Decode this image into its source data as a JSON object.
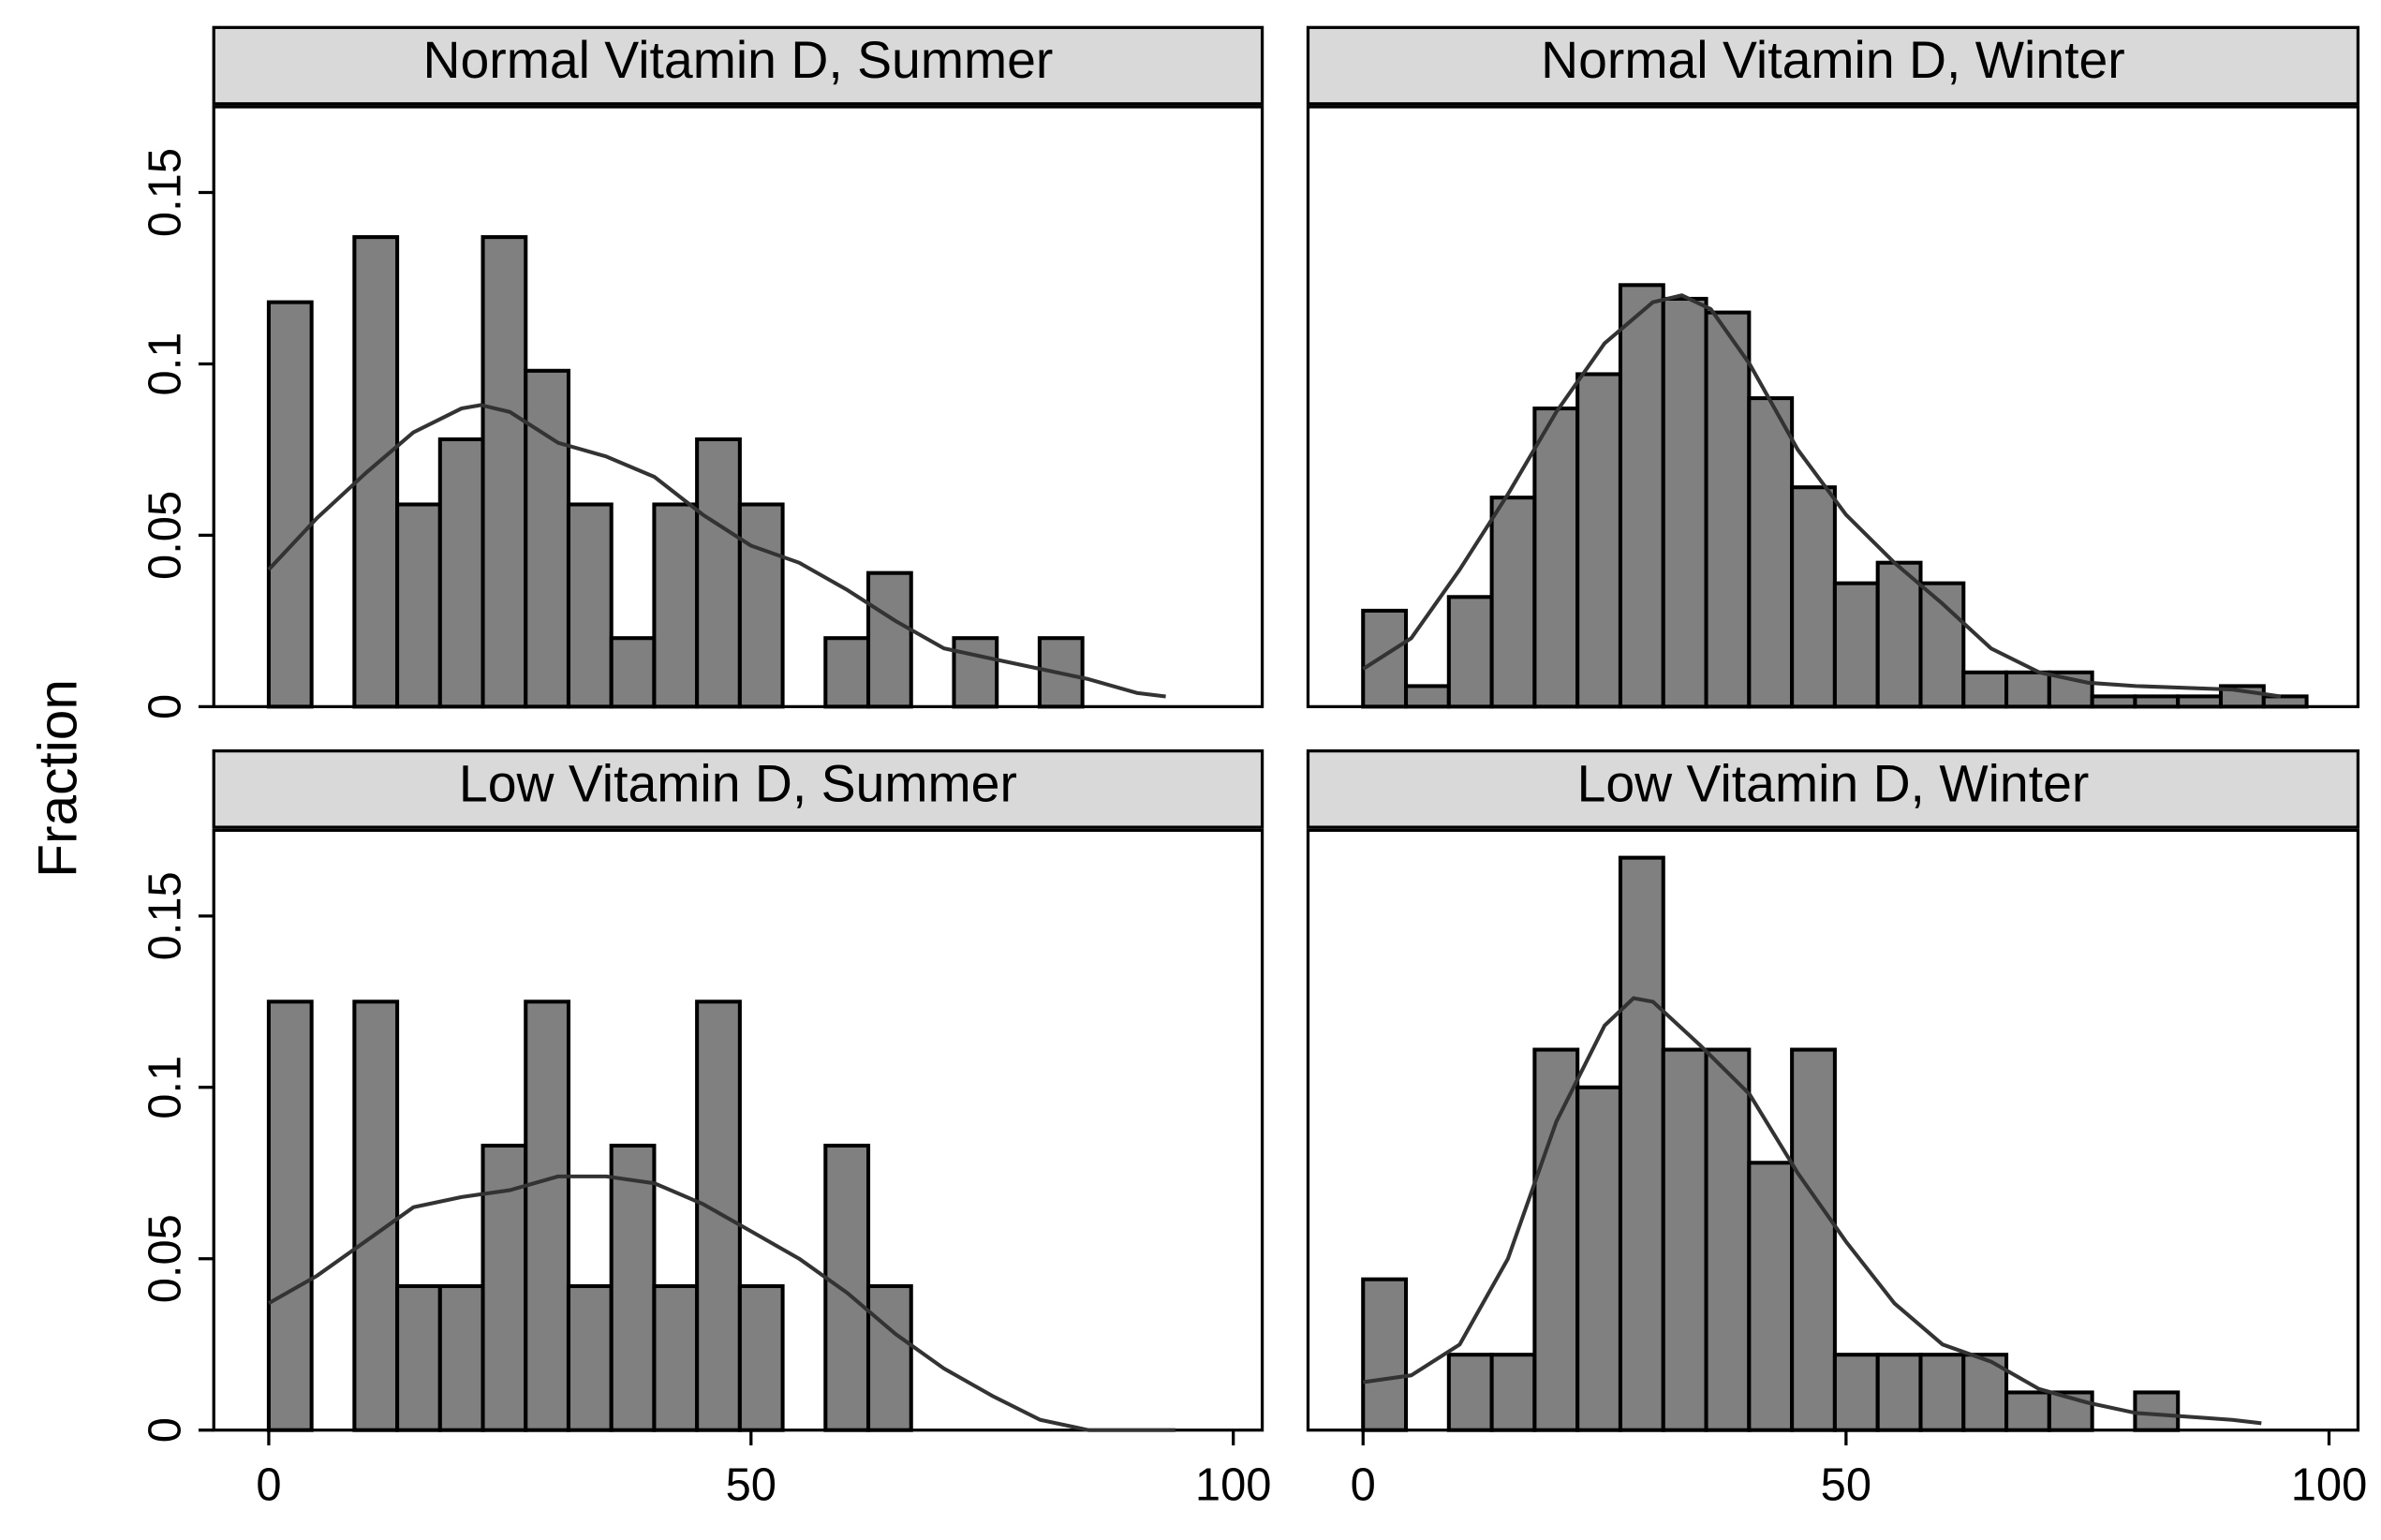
{
  "chart_data": [
    {
      "type": "bar",
      "title": "Normal Vitamin D, Summer",
      "bin_width": 4.44,
      "bin_start": 0,
      "values": [
        0.118,
        0,
        0.137,
        0.059,
        0.078,
        0.137,
        0.098,
        0.059,
        0.02,
        0.059,
        0.078,
        0.059,
        0,
        0.02,
        0.039,
        0,
        0.02,
        0,
        0.02
      ],
      "density_curve": [
        [
          0,
          0.04
        ],
        [
          5,
          0.055
        ],
        [
          10,
          0.068
        ],
        [
          15,
          0.08
        ],
        [
          20,
          0.087
        ],
        [
          22,
          0.088
        ],
        [
          25,
          0.086
        ],
        [
          30,
          0.077
        ],
        [
          35,
          0.073
        ],
        [
          40,
          0.067
        ],
        [
          45,
          0.056
        ],
        [
          50,
          0.047
        ],
        [
          55,
          0.042
        ],
        [
          60,
          0.034
        ],
        [
          65,
          0.025
        ],
        [
          70,
          0.017
        ],
        [
          75,
          0.014
        ],
        [
          80,
          0.011
        ],
        [
          85,
          0.008
        ],
        [
          90,
          0.004
        ],
        [
          93,
          0.003
        ]
      ]
    },
    {
      "type": "bar",
      "title": "Normal Vitamin D, Winter",
      "bin_width": 4.44,
      "bin_start": 0,
      "values": [
        0.028,
        0.006,
        0.032,
        0.061,
        0.087,
        0.097,
        0.123,
        0.119,
        0.115,
        0.09,
        0.064,
        0.036,
        0.042,
        0.036,
        0.01,
        0.01,
        0.01,
        0.003,
        0.003,
        0.003,
        0.006,
        0.003
      ],
      "density_curve": [
        [
          0,
          0.011
        ],
        [
          5,
          0.02
        ],
        [
          10,
          0.04
        ],
        [
          15,
          0.062
        ],
        [
          20,
          0.086
        ],
        [
          25,
          0.106
        ],
        [
          30,
          0.118
        ],
        [
          33,
          0.12
        ],
        [
          36,
          0.116
        ],
        [
          40,
          0.1
        ],
        [
          45,
          0.075
        ],
        [
          50,
          0.056
        ],
        [
          55,
          0.042
        ],
        [
          60,
          0.03
        ],
        [
          65,
          0.017
        ],
        [
          70,
          0.01
        ],
        [
          75,
          0.007
        ],
        [
          80,
          0.006
        ],
        [
          90,
          0.005
        ],
        [
          95,
          0.003
        ]
      ]
    },
    {
      "type": "bar",
      "title": "Low Vitamin D, Summer",
      "bin_width": 4.44,
      "bin_start": 0,
      "values": [
        0.125,
        0,
        0.125,
        0.042,
        0.042,
        0.083,
        0.125,
        0.042,
        0.083,
        0.042,
        0.125,
        0.042,
        0,
        0.083,
        0.042
      ],
      "density_curve": [
        [
          0,
          0.037
        ],
        [
          5,
          0.045
        ],
        [
          10,
          0.055
        ],
        [
          15,
          0.065
        ],
        [
          20,
          0.068
        ],
        [
          25,
          0.07
        ],
        [
          30,
          0.074
        ],
        [
          35,
          0.074
        ],
        [
          40,
          0.072
        ],
        [
          45,
          0.066
        ],
        [
          50,
          0.058
        ],
        [
          55,
          0.05
        ],
        [
          60,
          0.04
        ],
        [
          65,
          0.028
        ],
        [
          70,
          0.018
        ],
        [
          75,
          0.01
        ],
        [
          80,
          0.003
        ],
        [
          85,
          0
        ],
        [
          94,
          0
        ]
      ]
    },
    {
      "type": "bar",
      "title": "Low Vitamin D, Winter",
      "bin_width": 4.44,
      "bin_start": 0,
      "values": [
        0.044,
        0,
        0.022,
        0.022,
        0.111,
        0.1,
        0.167,
        0.111,
        0.111,
        0.078,
        0.111,
        0.022,
        0.022,
        0.022,
        0.022,
        0.011,
        0.011,
        0,
        0.011
      ],
      "density_curve": [
        [
          0,
          0.014
        ],
        [
          5,
          0.016
        ],
        [
          10,
          0.025
        ],
        [
          15,
          0.05
        ],
        [
          20,
          0.09
        ],
        [
          25,
          0.118
        ],
        [
          28,
          0.126
        ],
        [
          30,
          0.125
        ],
        [
          35,
          0.112
        ],
        [
          40,
          0.098
        ],
        [
          45,
          0.075
        ],
        [
          50,
          0.055
        ],
        [
          55,
          0.037
        ],
        [
          60,
          0.025
        ],
        [
          65,
          0.02
        ],
        [
          70,
          0.012
        ],
        [
          75,
          0.008
        ],
        [
          80,
          0.005
        ],
        [
          90,
          0.003
        ],
        [
          93,
          0.002
        ]
      ]
    }
  ],
  "axes": {
    "ylabel": "Fraction",
    "xlabel": "",
    "ylim": [
      0,
      0.175
    ],
    "xlim": [
      -5.7,
      103
    ],
    "yticks": [
      0,
      0.05,
      0.1,
      0.15
    ],
    "ytick_labels": [
      "0",
      "0.05",
      "0.1",
      "0.15"
    ],
    "xticks": [
      0,
      50,
      100
    ],
    "xtick_labels": [
      "0",
      "50",
      "100"
    ],
    "grid": false
  },
  "colors": {
    "bar_fill": "#808080",
    "bar_edge": "#000000",
    "curve": "#333333",
    "strip_fill": "#d9d9d9"
  }
}
